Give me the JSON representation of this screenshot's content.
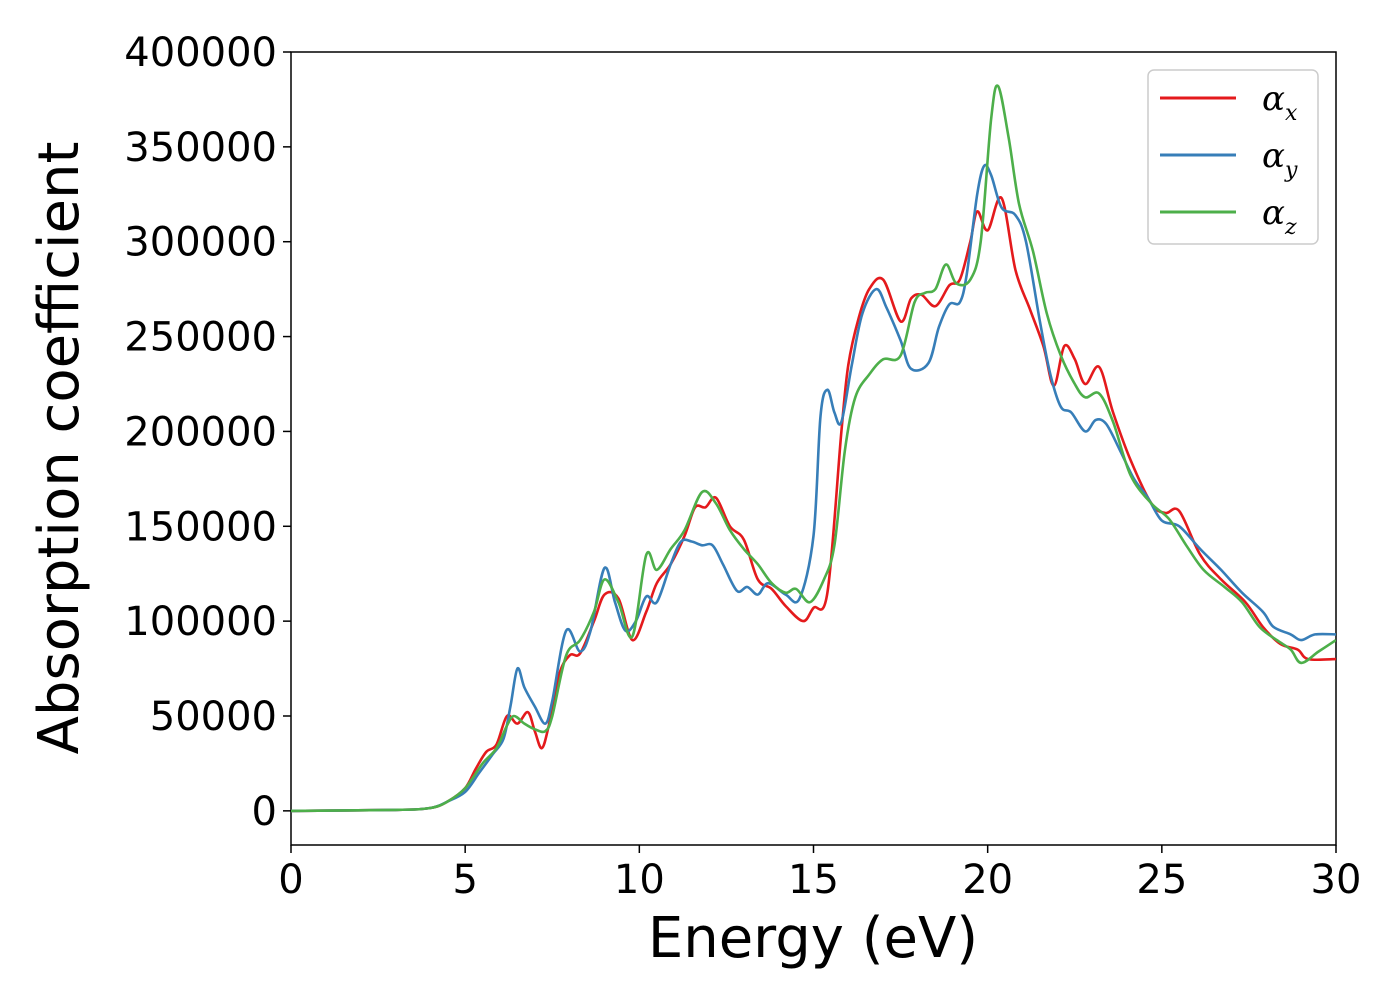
{
  "chart_data": {
    "type": "line",
    "xlabel": "Energy (eV)",
    "ylabel": "Absorption coefficient",
    "xlim": [
      0,
      30
    ],
    "ylim": [
      -18000,
      400000
    ],
    "x_ticks": [
      0,
      5,
      10,
      15,
      20,
      25,
      30
    ],
    "y_ticks": [
      0,
      50000,
      100000,
      150000,
      200000,
      250000,
      300000,
      350000,
      400000
    ],
    "grid": false,
    "legend_position": "top-right",
    "series": [
      {
        "name": "αx",
        "legend_base": "α",
        "legend_sub": "x",
        "color": "#e41a1c",
        "points": [
          [
            0,
            0
          ],
          [
            3,
            500
          ],
          [
            4,
            1500
          ],
          [
            4.5,
            5000
          ],
          [
            5,
            12000
          ],
          [
            5.3,
            22000
          ],
          [
            5.6,
            31000
          ],
          [
            5.9,
            35000
          ],
          [
            6.2,
            50000
          ],
          [
            6.5,
            46000
          ],
          [
            6.8,
            52000
          ],
          [
            7,
            42000
          ],
          [
            7.2,
            33000
          ],
          [
            7.4,
            45000
          ],
          [
            7.7,
            72000
          ],
          [
            8,
            82000
          ],
          [
            8.3,
            83000
          ],
          [
            8.7,
            100000
          ],
          [
            9,
            114000
          ],
          [
            9.4,
            112000
          ],
          [
            9.8,
            90000
          ],
          [
            10.2,
            105000
          ],
          [
            10.5,
            120000
          ],
          [
            10.9,
            130000
          ],
          [
            11.3,
            145000
          ],
          [
            11.6,
            160000
          ],
          [
            11.9,
            160000
          ],
          [
            12.2,
            165000
          ],
          [
            12.6,
            150000
          ],
          [
            13,
            143000
          ],
          [
            13.4,
            122000
          ],
          [
            13.8,
            117000
          ],
          [
            14.2,
            108000
          ],
          [
            14.7,
            100000
          ],
          [
            15,
            107000
          ],
          [
            15.4,
            115000
          ],
          [
            15.8,
            200000
          ],
          [
            16,
            235000
          ],
          [
            16.3,
            260000
          ],
          [
            16.6,
            275000
          ],
          [
            17,
            280000
          ],
          [
            17.5,
            258000
          ],
          [
            17.8,
            270000
          ],
          [
            18.1,
            272000
          ],
          [
            18.5,
            266000
          ],
          [
            18.9,
            277000
          ],
          [
            19.2,
            280000
          ],
          [
            19.5,
            300000
          ],
          [
            19.7,
            316000
          ],
          [
            20,
            306000
          ],
          [
            20.4,
            323000
          ],
          [
            20.8,
            285000
          ],
          [
            21.2,
            265000
          ],
          [
            21.6,
            245000
          ],
          [
            21.9,
            224000
          ],
          [
            22.2,
            245000
          ],
          [
            22.5,
            238000
          ],
          [
            22.8,
            225000
          ],
          [
            23.2,
            234000
          ],
          [
            23.6,
            210000
          ],
          [
            24.1,
            185000
          ],
          [
            24.7,
            162000
          ],
          [
            25.1,
            157000
          ],
          [
            25.5,
            158000
          ],
          [
            26.1,
            135000
          ],
          [
            26.7,
            122000
          ],
          [
            27.4,
            110000
          ],
          [
            27.9,
            97000
          ],
          [
            28.4,
            88000
          ],
          [
            28.9,
            85000
          ],
          [
            29.2,
            80000
          ],
          [
            30,
            80000
          ]
        ]
      },
      {
        "name": "αy",
        "legend_base": "α",
        "legend_sub": "y",
        "color": "#377eb8",
        "points": [
          [
            0,
            0
          ],
          [
            3,
            500
          ],
          [
            4,
            1500
          ],
          [
            4.5,
            5000
          ],
          [
            5,
            10000
          ],
          [
            5.4,
            20000
          ],
          [
            5.8,
            30000
          ],
          [
            6.1,
            38000
          ],
          [
            6.3,
            55000
          ],
          [
            6.5,
            75000
          ],
          [
            6.7,
            65000
          ],
          [
            7,
            55000
          ],
          [
            7.3,
            46000
          ],
          [
            7.5,
            58000
          ],
          [
            7.9,
            95000
          ],
          [
            8.3,
            84000
          ],
          [
            8.6,
            95000
          ],
          [
            9,
            128000
          ],
          [
            9.3,
            110000
          ],
          [
            9.6,
            95000
          ],
          [
            9.9,
            100000
          ],
          [
            10.2,
            113000
          ],
          [
            10.5,
            110000
          ],
          [
            10.9,
            130000
          ],
          [
            11.2,
            142000
          ],
          [
            11.5,
            142000
          ],
          [
            11.8,
            140000
          ],
          [
            12.1,
            140000
          ],
          [
            12.4,
            130000
          ],
          [
            12.8,
            116000
          ],
          [
            13.1,
            118000
          ],
          [
            13.4,
            114000
          ],
          [
            13.7,
            120000
          ],
          [
            14.2,
            114000
          ],
          [
            14.6,
            112000
          ],
          [
            15,
            145000
          ],
          [
            15.2,
            208000
          ],
          [
            15.4,
            222000
          ],
          [
            15.6,
            210000
          ],
          [
            15.8,
            205000
          ],
          [
            16.1,
            235000
          ],
          [
            16.4,
            262000
          ],
          [
            16.8,
            275000
          ],
          [
            17.1,
            265000
          ],
          [
            17.5,
            248000
          ],
          [
            17.8,
            233000
          ],
          [
            18.3,
            236000
          ],
          [
            18.6,
            255000
          ],
          [
            18.9,
            267000
          ],
          [
            19.2,
            268000
          ],
          [
            19.4,
            283000
          ],
          [
            19.7,
            325000
          ],
          [
            19.9,
            340000
          ],
          [
            20.1,
            335000
          ],
          [
            20.4,
            318000
          ],
          [
            20.8,
            314000
          ],
          [
            21.1,
            300000
          ],
          [
            21.5,
            258000
          ],
          [
            21.8,
            230000
          ],
          [
            22.1,
            213000
          ],
          [
            22.4,
            210000
          ],
          [
            22.8,
            200000
          ],
          [
            23.1,
            206000
          ],
          [
            23.4,
            204000
          ],
          [
            23.8,
            190000
          ],
          [
            24.2,
            175000
          ],
          [
            24.6,
            165000
          ],
          [
            25,
            153000
          ],
          [
            25.5,
            150000
          ],
          [
            26.1,
            138000
          ],
          [
            26.7,
            127000
          ],
          [
            27.3,
            115000
          ],
          [
            27.9,
            105000
          ],
          [
            28.2,
            97000
          ],
          [
            28.7,
            93000
          ],
          [
            29,
            90000
          ],
          [
            29.4,
            93000
          ],
          [
            30,
            93000
          ]
        ]
      },
      {
        "name": "αz",
        "legend_base": "α",
        "legend_sub": "z",
        "color": "#4daf4a",
        "points": [
          [
            0,
            0
          ],
          [
            3,
            500
          ],
          [
            4,
            1500
          ],
          [
            4.5,
            5000
          ],
          [
            5,
            12000
          ],
          [
            5.5,
            25000
          ],
          [
            5.9,
            33000
          ],
          [
            6.2,
            45000
          ],
          [
            6.4,
            50000
          ],
          [
            6.7,
            46000
          ],
          [
            7,
            43000
          ],
          [
            7.3,
            42000
          ],
          [
            7.5,
            50000
          ],
          [
            7.9,
            82000
          ],
          [
            8.3,
            90000
          ],
          [
            8.7,
            105000
          ],
          [
            9,
            122000
          ],
          [
            9.4,
            110000
          ],
          [
            9.8,
            92000
          ],
          [
            10.2,
            135000
          ],
          [
            10.5,
            127000
          ],
          [
            10.9,
            138000
          ],
          [
            11.3,
            148000
          ],
          [
            11.8,
            168000
          ],
          [
            12.2,
            162000
          ],
          [
            12.6,
            148000
          ],
          [
            13,
            138000
          ],
          [
            13.4,
            130000
          ],
          [
            13.8,
            120000
          ],
          [
            14.2,
            115000
          ],
          [
            14.5,
            117000
          ],
          [
            14.9,
            110000
          ],
          [
            15.3,
            122000
          ],
          [
            15.6,
            140000
          ],
          [
            15.9,
            190000
          ],
          [
            16.2,
            218000
          ],
          [
            16.6,
            230000
          ],
          [
            17,
            238000
          ],
          [
            17.5,
            240000
          ],
          [
            17.9,
            268000
          ],
          [
            18.2,
            273000
          ],
          [
            18.5,
            275000
          ],
          [
            18.8,
            288000
          ],
          [
            19.1,
            278000
          ],
          [
            19.5,
            280000
          ],
          [
            19.8,
            300000
          ],
          [
            20.1,
            365000
          ],
          [
            20.3,
            382000
          ],
          [
            20.6,
            355000
          ],
          [
            20.9,
            320000
          ],
          [
            21.3,
            295000
          ],
          [
            21.7,
            262000
          ],
          [
            22.1,
            240000
          ],
          [
            22.5,
            225000
          ],
          [
            22.8,
            218000
          ],
          [
            23.2,
            220000
          ],
          [
            23.6,
            205000
          ],
          [
            24.1,
            177000
          ],
          [
            24.7,
            162000
          ],
          [
            25.2,
            154000
          ],
          [
            25.7,
            140000
          ],
          [
            26.2,
            127000
          ],
          [
            26.8,
            118000
          ],
          [
            27.3,
            110000
          ],
          [
            27.8,
            97000
          ],
          [
            28.3,
            90000
          ],
          [
            28.7,
            85000
          ],
          [
            29,
            78000
          ],
          [
            29.5,
            84000
          ],
          [
            30,
            90000
          ]
        ]
      }
    ]
  }
}
